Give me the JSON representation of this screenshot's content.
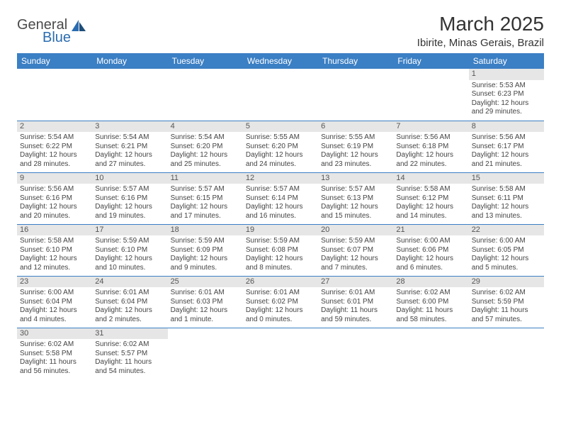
{
  "logo": {
    "general": "General",
    "blue": "Blue"
  },
  "title": "March 2025",
  "location": "Ibirite, Minas Gerais, Brazil",
  "header_bg": "#3b7fc4",
  "day_headers": [
    "Sunday",
    "Monday",
    "Tuesday",
    "Wednesday",
    "Thursday",
    "Friday",
    "Saturday"
  ],
  "weeks": [
    [
      null,
      null,
      null,
      null,
      null,
      null,
      {
        "n": "1",
        "sr": "Sunrise: 5:53 AM",
        "ss": "Sunset: 6:23 PM",
        "dl": "Daylight: 12 hours and 29 minutes."
      }
    ],
    [
      {
        "n": "2",
        "sr": "Sunrise: 5:54 AM",
        "ss": "Sunset: 6:22 PM",
        "dl": "Daylight: 12 hours and 28 minutes."
      },
      {
        "n": "3",
        "sr": "Sunrise: 5:54 AM",
        "ss": "Sunset: 6:21 PM",
        "dl": "Daylight: 12 hours and 27 minutes."
      },
      {
        "n": "4",
        "sr": "Sunrise: 5:54 AM",
        "ss": "Sunset: 6:20 PM",
        "dl": "Daylight: 12 hours and 25 minutes."
      },
      {
        "n": "5",
        "sr": "Sunrise: 5:55 AM",
        "ss": "Sunset: 6:20 PM",
        "dl": "Daylight: 12 hours and 24 minutes."
      },
      {
        "n": "6",
        "sr": "Sunrise: 5:55 AM",
        "ss": "Sunset: 6:19 PM",
        "dl": "Daylight: 12 hours and 23 minutes."
      },
      {
        "n": "7",
        "sr": "Sunrise: 5:56 AM",
        "ss": "Sunset: 6:18 PM",
        "dl": "Daylight: 12 hours and 22 minutes."
      },
      {
        "n": "8",
        "sr": "Sunrise: 5:56 AM",
        "ss": "Sunset: 6:17 PM",
        "dl": "Daylight: 12 hours and 21 minutes."
      }
    ],
    [
      {
        "n": "9",
        "sr": "Sunrise: 5:56 AM",
        "ss": "Sunset: 6:16 PM",
        "dl": "Daylight: 12 hours and 20 minutes."
      },
      {
        "n": "10",
        "sr": "Sunrise: 5:57 AM",
        "ss": "Sunset: 6:16 PM",
        "dl": "Daylight: 12 hours and 19 minutes."
      },
      {
        "n": "11",
        "sr": "Sunrise: 5:57 AM",
        "ss": "Sunset: 6:15 PM",
        "dl": "Daylight: 12 hours and 17 minutes."
      },
      {
        "n": "12",
        "sr": "Sunrise: 5:57 AM",
        "ss": "Sunset: 6:14 PM",
        "dl": "Daylight: 12 hours and 16 minutes."
      },
      {
        "n": "13",
        "sr": "Sunrise: 5:57 AM",
        "ss": "Sunset: 6:13 PM",
        "dl": "Daylight: 12 hours and 15 minutes."
      },
      {
        "n": "14",
        "sr": "Sunrise: 5:58 AM",
        "ss": "Sunset: 6:12 PM",
        "dl": "Daylight: 12 hours and 14 minutes."
      },
      {
        "n": "15",
        "sr": "Sunrise: 5:58 AM",
        "ss": "Sunset: 6:11 PM",
        "dl": "Daylight: 12 hours and 13 minutes."
      }
    ],
    [
      {
        "n": "16",
        "sr": "Sunrise: 5:58 AM",
        "ss": "Sunset: 6:10 PM",
        "dl": "Daylight: 12 hours and 12 minutes."
      },
      {
        "n": "17",
        "sr": "Sunrise: 5:59 AM",
        "ss": "Sunset: 6:10 PM",
        "dl": "Daylight: 12 hours and 10 minutes."
      },
      {
        "n": "18",
        "sr": "Sunrise: 5:59 AM",
        "ss": "Sunset: 6:09 PM",
        "dl": "Daylight: 12 hours and 9 minutes."
      },
      {
        "n": "19",
        "sr": "Sunrise: 5:59 AM",
        "ss": "Sunset: 6:08 PM",
        "dl": "Daylight: 12 hours and 8 minutes."
      },
      {
        "n": "20",
        "sr": "Sunrise: 5:59 AM",
        "ss": "Sunset: 6:07 PM",
        "dl": "Daylight: 12 hours and 7 minutes."
      },
      {
        "n": "21",
        "sr": "Sunrise: 6:00 AM",
        "ss": "Sunset: 6:06 PM",
        "dl": "Daylight: 12 hours and 6 minutes."
      },
      {
        "n": "22",
        "sr": "Sunrise: 6:00 AM",
        "ss": "Sunset: 6:05 PM",
        "dl": "Daylight: 12 hours and 5 minutes."
      }
    ],
    [
      {
        "n": "23",
        "sr": "Sunrise: 6:00 AM",
        "ss": "Sunset: 6:04 PM",
        "dl": "Daylight: 12 hours and 4 minutes."
      },
      {
        "n": "24",
        "sr": "Sunrise: 6:01 AM",
        "ss": "Sunset: 6:04 PM",
        "dl": "Daylight: 12 hours and 2 minutes."
      },
      {
        "n": "25",
        "sr": "Sunrise: 6:01 AM",
        "ss": "Sunset: 6:03 PM",
        "dl": "Daylight: 12 hours and 1 minute."
      },
      {
        "n": "26",
        "sr": "Sunrise: 6:01 AM",
        "ss": "Sunset: 6:02 PM",
        "dl": "Daylight: 12 hours and 0 minutes."
      },
      {
        "n": "27",
        "sr": "Sunrise: 6:01 AM",
        "ss": "Sunset: 6:01 PM",
        "dl": "Daylight: 11 hours and 59 minutes."
      },
      {
        "n": "28",
        "sr": "Sunrise: 6:02 AM",
        "ss": "Sunset: 6:00 PM",
        "dl": "Daylight: 11 hours and 58 minutes."
      },
      {
        "n": "29",
        "sr": "Sunrise: 6:02 AM",
        "ss": "Sunset: 5:59 PM",
        "dl": "Daylight: 11 hours and 57 minutes."
      }
    ],
    [
      {
        "n": "30",
        "sr": "Sunrise: 6:02 AM",
        "ss": "Sunset: 5:58 PM",
        "dl": "Daylight: 11 hours and 56 minutes."
      },
      {
        "n": "31",
        "sr": "Sunrise: 6:02 AM",
        "ss": "Sunset: 5:57 PM",
        "dl": "Daylight: 11 hours and 54 minutes."
      },
      null,
      null,
      null,
      null,
      null
    ]
  ]
}
